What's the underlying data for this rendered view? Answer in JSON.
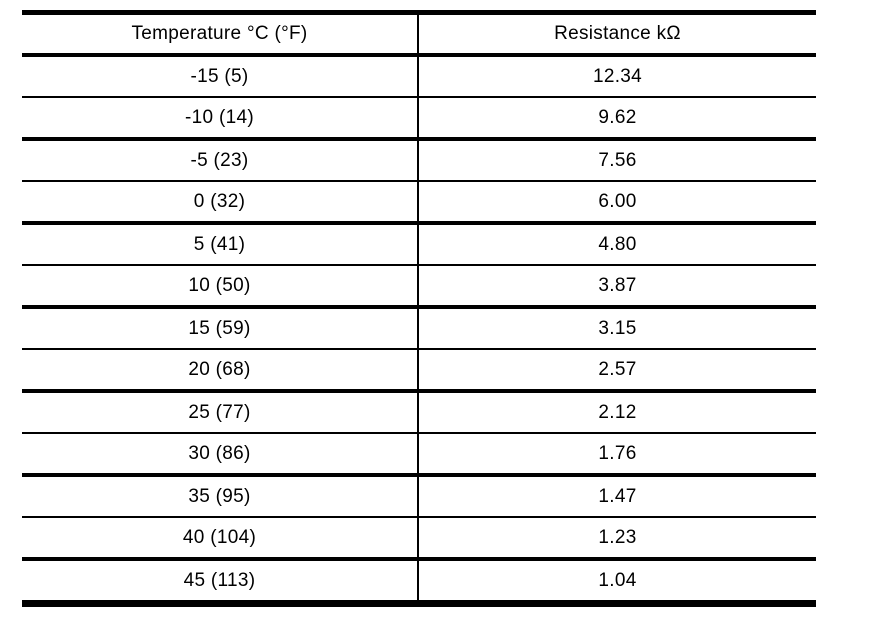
{
  "page": {
    "background_color": "#ffffff"
  },
  "table": {
    "headers": [
      "Temperature °C (°F)",
      "Resistance kΩ"
    ],
    "rows": [
      [
        "-15 (5)",
        "12.34"
      ],
      [
        "-10 (14)",
        "9.62"
      ],
      [
        "-5 (23)",
        "7.56"
      ],
      [
        "0 (32)",
        "6.00"
      ],
      [
        "5 (41)",
        "4.80"
      ],
      [
        "10 (50)",
        "3.87"
      ],
      [
        "15 (59)",
        "3.15"
      ],
      [
        "20 (68)",
        "2.57"
      ],
      [
        "25 (77)",
        "2.12"
      ],
      [
        "30 (86)",
        "1.76"
      ],
      [
        "35 (95)",
        "1.47"
      ],
      [
        "40 (104)",
        "1.23"
      ],
      [
        "45 (113)",
        "1.04"
      ]
    ],
    "colors": {
      "border": "#000000",
      "text": "#000000",
      "cell_background": "#ffffff"
    }
  }
}
